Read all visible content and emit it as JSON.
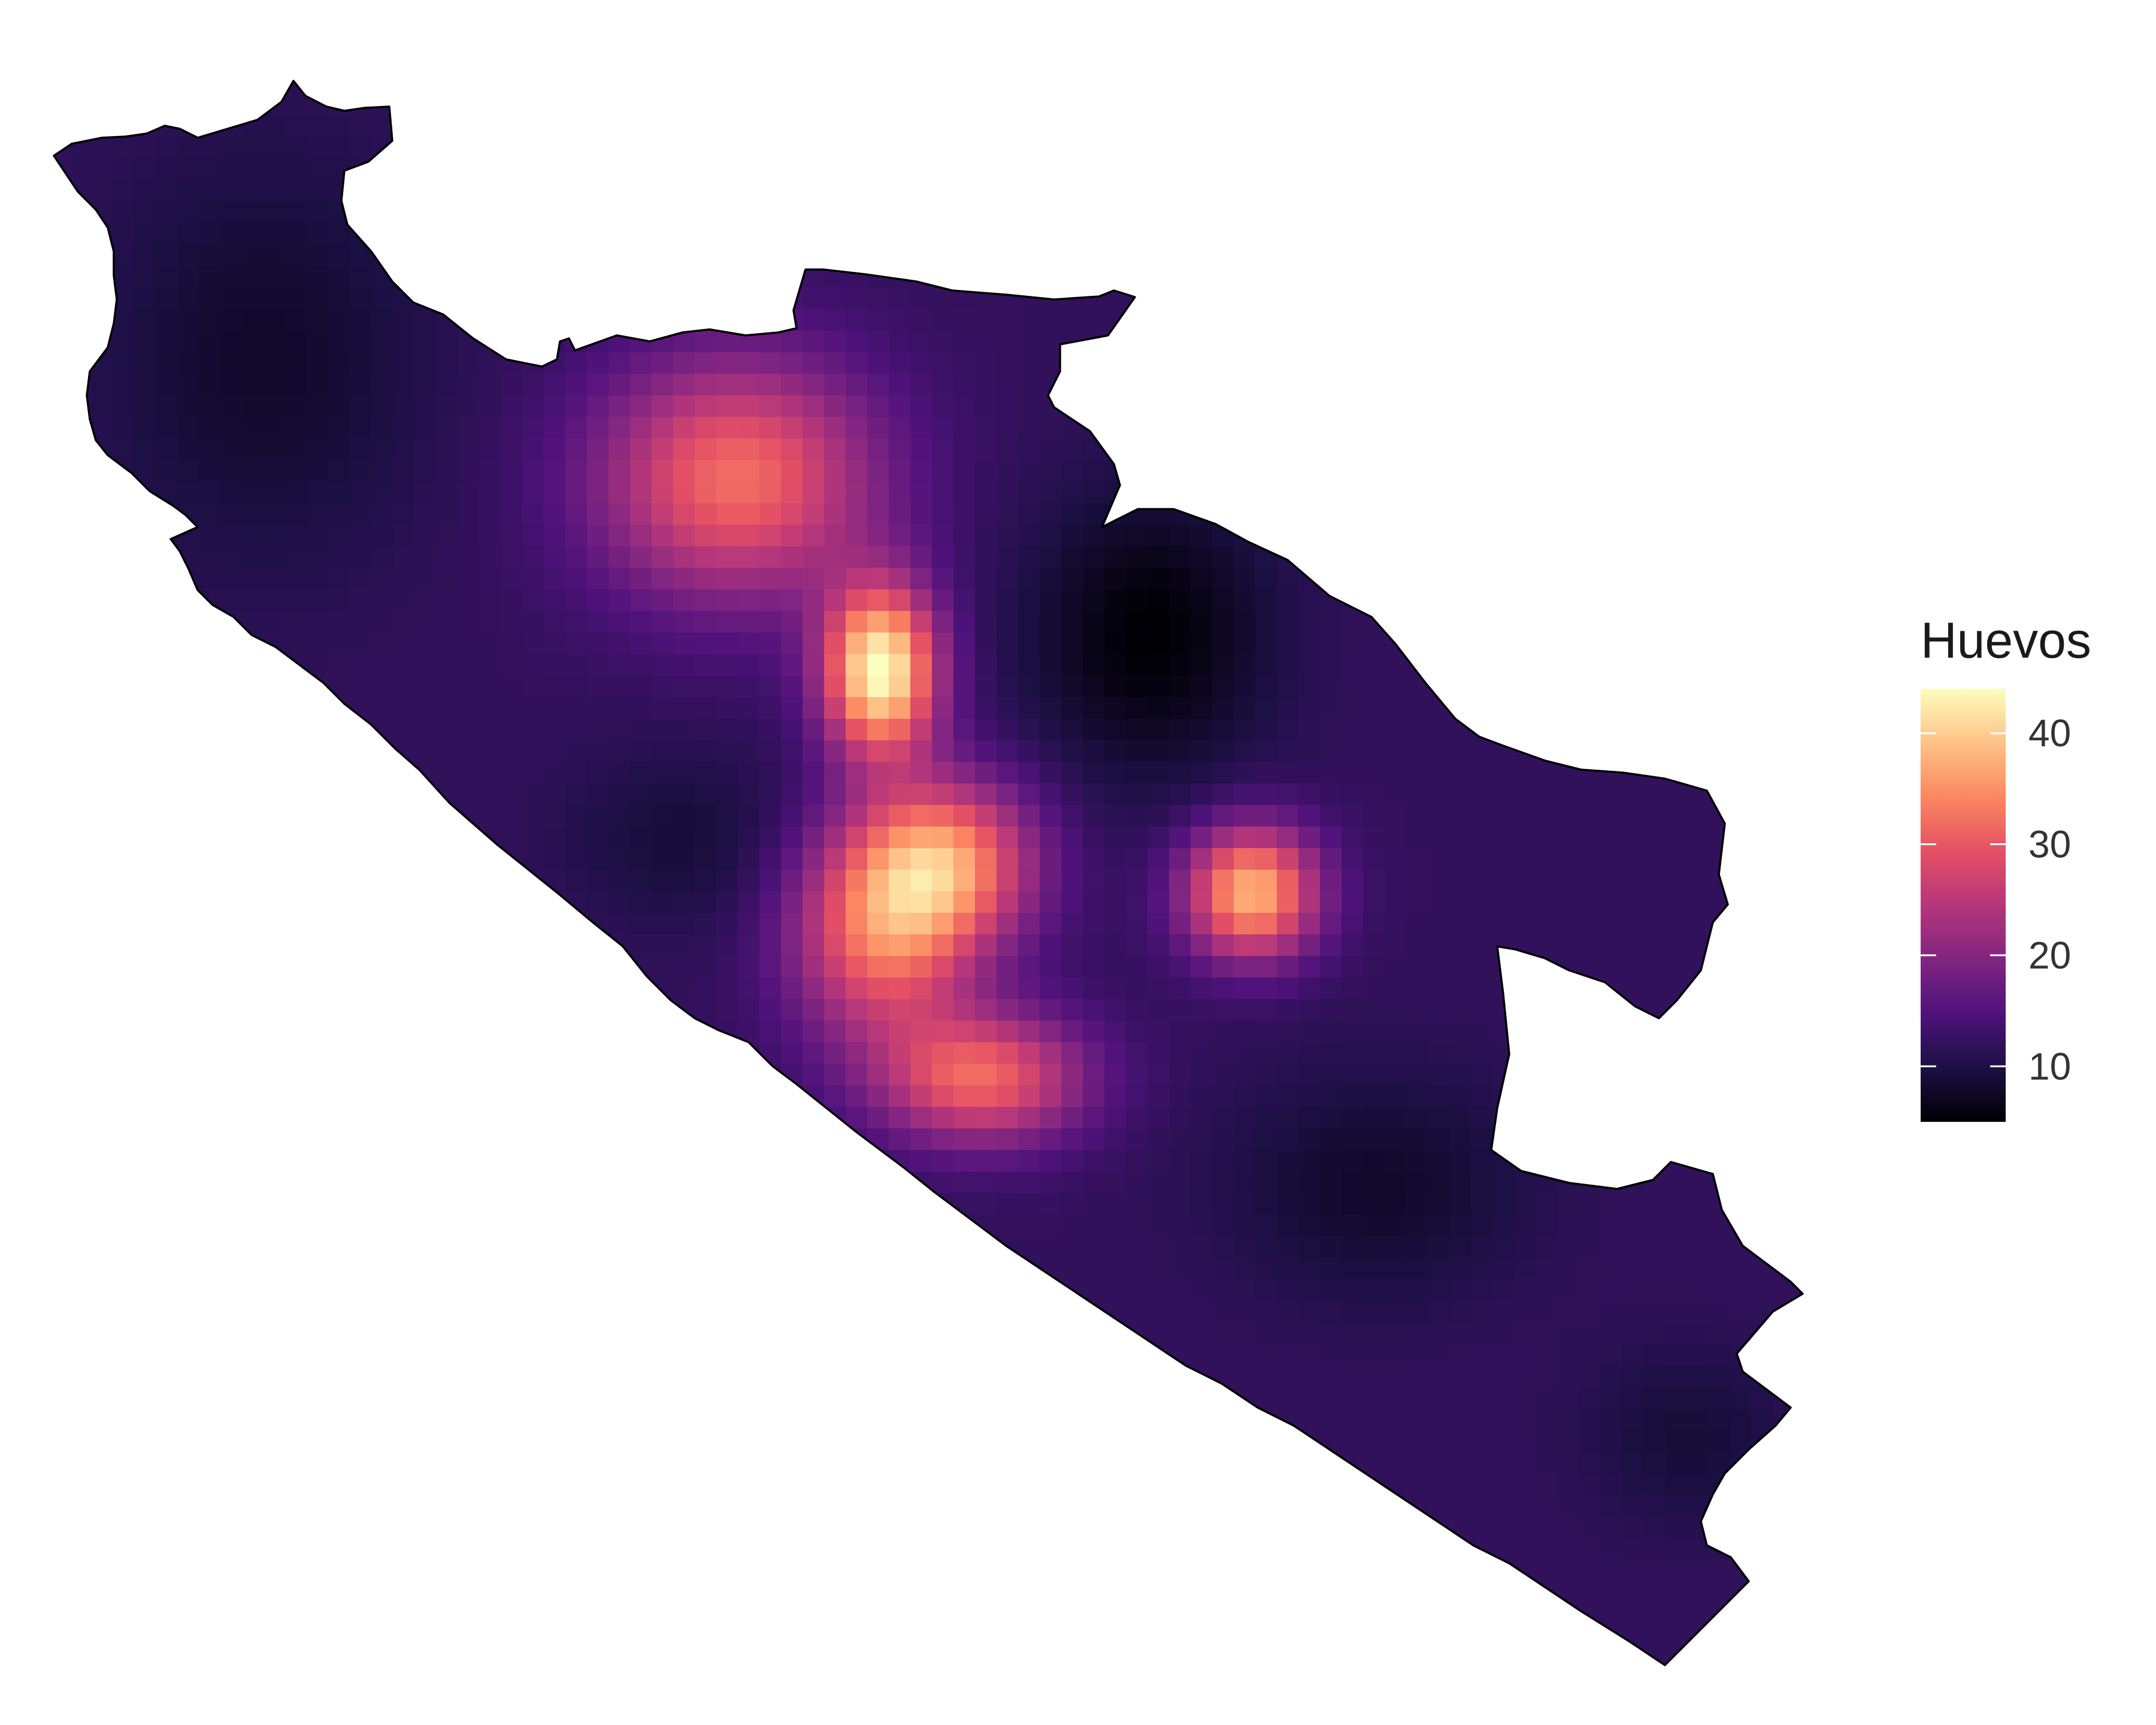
{
  "chart_data": {
    "type": "heatmap",
    "title": "",
    "legend": {
      "title": "Huevos",
      "ticks": [
        10,
        20,
        30,
        40
      ],
      "range": [
        5,
        44
      ],
      "placement": "right",
      "colormap": "magma",
      "colors": [
        "#000004",
        "#1c1044",
        "#4f127b",
        "#812581",
        "#b5367a",
        "#e55064",
        "#fb8761",
        "#fec287",
        "#fcfdbf"
      ]
    },
    "hotspots": [
      {
        "region": "central-north",
        "peak": 44
      },
      {
        "region": "north-ridge",
        "peak": 32
      },
      {
        "region": "central-east",
        "peak": 38
      },
      {
        "region": "central",
        "peak": 33
      },
      {
        "region": "central-south",
        "peak": 31
      },
      {
        "region": "south",
        "peak": 31
      }
    ],
    "background_level": 12,
    "grid": false
  }
}
